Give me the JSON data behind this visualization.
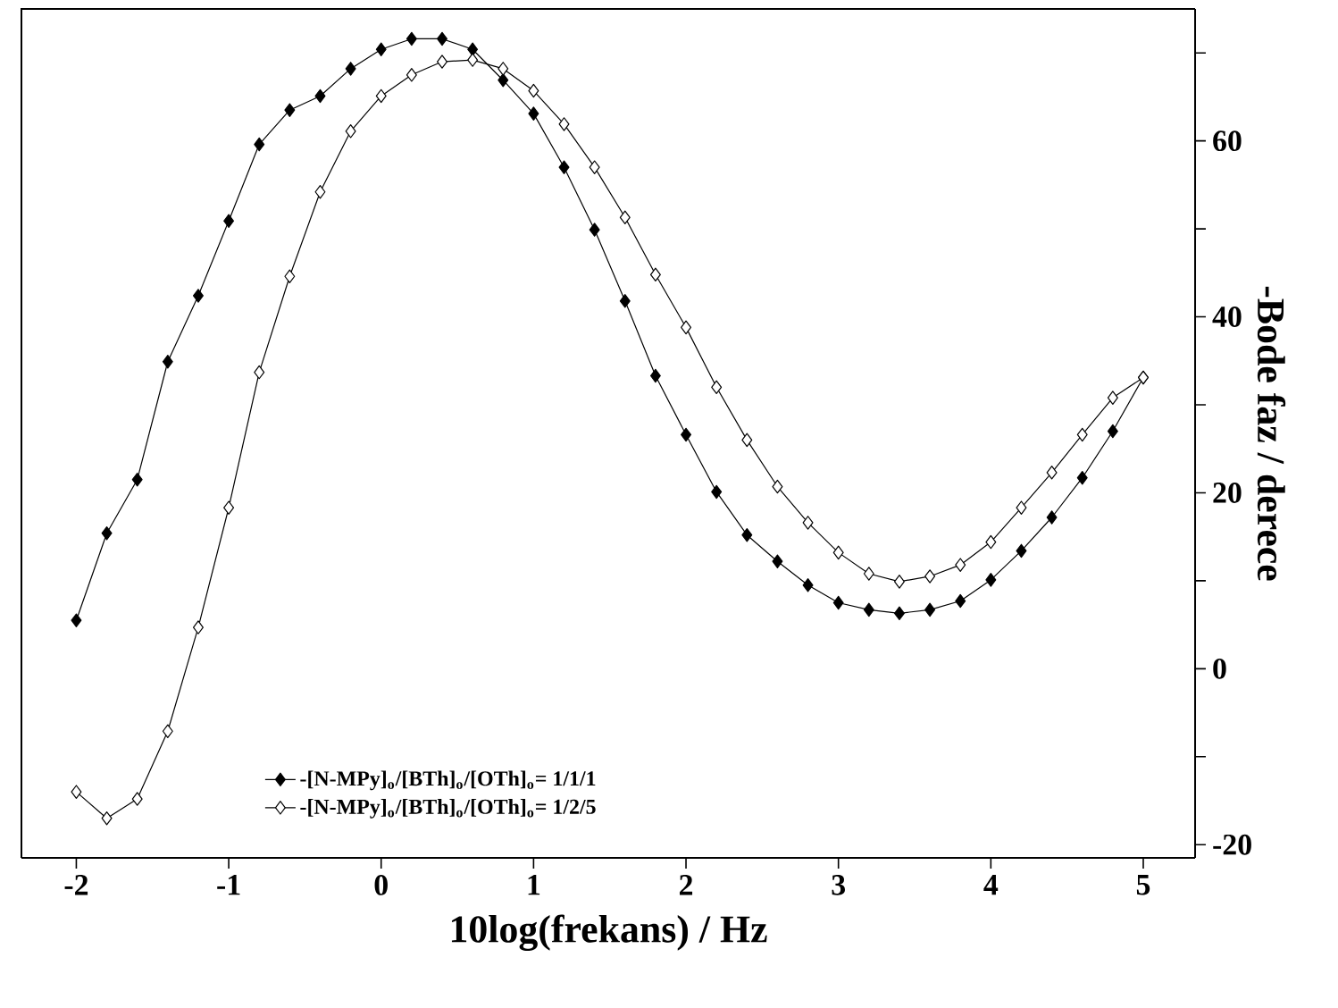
{
  "chart_data": {
    "type": "line",
    "xlabel": "10log(frekans) / Hz",
    "ylabel": "-Bode faz / derece",
    "x": [
      -2,
      -1.8,
      -1.6,
      -1.4,
      -1.2,
      -1.0,
      -0.8,
      -0.6,
      -0.4,
      -0.2,
      0,
      0.2,
      0.4,
      0.6,
      0.8,
      1.0,
      1.2,
      1.4,
      1.6,
      1.8,
      2.0,
      2.2,
      2.4,
      2.6,
      2.8,
      3.0,
      3.2,
      3.4,
      3.6,
      3.8,
      4.0,
      4.2,
      4.4,
      4.6,
      4.8,
      5.0
    ],
    "series": [
      {
        "name": "-[N-MPy]$_{o}$/[BTh]$_{o}$/[OTh]$_{o}$= 1/1/1",
        "color": "#000000",
        "values": [
          5.5,
          15.4,
          21.5,
          34.9,
          42.4,
          50.9,
          59.6,
          63.5,
          65.1,
          68.2,
          70.4,
          71.6,
          71.6,
          70.4,
          66.9,
          63.1,
          57.0,
          49.9,
          41.8,
          33.3,
          26.6,
          20.1,
          15.2,
          12.2,
          9.5,
          7.5,
          6.7,
          6.3,
          6.7,
          7.7,
          10.1,
          13.4,
          17.2,
          21.7,
          27.0,
          33.1
        ]
      },
      {
        "name": "-[N-MPy]$_{o}$/[BTh]$_{o}$/[OTh]$_{o}$= 1/2/5",
        "color": "#ffffff",
        "values": [
          -14.0,
          -17.0,
          -14.8,
          -7.1,
          4.7,
          18.3,
          33.7,
          44.6,
          54.2,
          61.1,
          65.1,
          67.5,
          69.0,
          69.2,
          68.2,
          65.7,
          61.9,
          57.0,
          51.3,
          44.8,
          38.8,
          32.0,
          26.0,
          20.7,
          16.6,
          13.2,
          10.8,
          9.9,
          10.5,
          11.8,
          14.4,
          18.3,
          22.3,
          26.6,
          30.8,
          33.1
        ]
      }
    ],
    "xlim": [
      -2.36,
      5.34
    ],
    "ylim": [
      -21.5,
      75
    ],
    "xticks": [
      -2,
      -1,
      0,
      1,
      2,
      3,
      4,
      5
    ],
    "yticks": [
      {
        "value": -20,
        "label": "-20"
      },
      {
        "value": -10,
        "label": null
      },
      0,
      {
        "value": 10,
        "label": null
      },
      20,
      {
        "value": 30,
        "label": null
      },
      40,
      {
        "value": 50,
        "label": null
      },
      60,
      {
        "value": 70,
        "label": null
      }
    ],
    "legend": "bottom",
    "marker": "diamond",
    "line_style": "solid",
    "grid": false
  }
}
